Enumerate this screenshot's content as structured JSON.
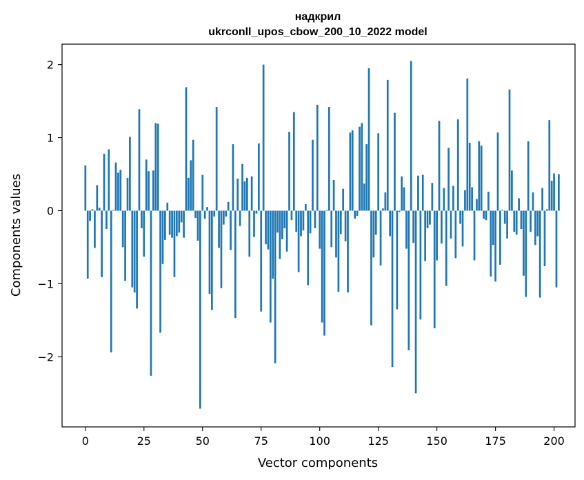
{
  "chart_data": {
    "type": "bar",
    "title_line1": "надкрил",
    "title_line2": "ukrconll_upos_cbow_200_10_2022 model",
    "xlabel": "Vector components",
    "ylabel": "Components values",
    "xlim": [
      -9.95,
      208.95
    ],
    "ylim": [
      -2.96,
      2.28
    ],
    "x_ticks": [
      0,
      25,
      50,
      75,
      100,
      125,
      150,
      175,
      200
    ],
    "y_ticks": [
      2,
      1,
      0,
      -1,
      -2
    ],
    "y_tick_labels": [
      "2",
      "1",
      "0",
      "−1",
      "−2"
    ],
    "bar_color": "#1f77b4",
    "values": [
      0.62,
      -0.93,
      -0.14,
      0.02,
      -0.51,
      0.35,
      0.04,
      -0.91,
      0.78,
      -0.25,
      0.84,
      -1.94,
      0.01,
      0.66,
      0.52,
      0.56,
      -0.5,
      -0.96,
      0.45,
      1.01,
      -1.05,
      -1.12,
      -1.34,
      1.39,
      -0.24,
      -0.63,
      0.7,
      0.54,
      -2.26,
      0.55,
      1.2,
      1.19,
      -1.67,
      -0.73,
      -0.4,
      0.11,
      -0.33,
      -0.37,
      -0.91,
      -0.35,
      -0.3,
      -0.16,
      -0.37,
      1.69,
      0.45,
      0.69,
      0.97,
      -0.1,
      -0.41,
      -2.71,
      0.49,
      -0.11,
      0.05,
      -1.14,
      -1.36,
      -0.08,
      1.42,
      -0.51,
      -1.06,
      -0.19,
      -0.08,
      0.12,
      -0.54,
      0.91,
      -1.47,
      0.44,
      -0.21,
      0.64,
      0.4,
      0.45,
      -0.63,
      0.47,
      -0.36,
      -0.04,
      0.92,
      -1.38,
      2.0,
      -0.46,
      -0.53,
      -1.53,
      -0.93,
      -2.09,
      -0.3,
      -0.66,
      -0.39,
      -0.24,
      -0.56,
      1.08,
      -0.13,
      1.35,
      -0.29,
      -0.84,
      -0.35,
      -0.27,
      0.09,
      -1.02,
      -0.31,
      0.97,
      -0.24,
      1.45,
      -0.52,
      -1.53,
      -1.71,
      0.01,
      1.42,
      -0.5,
      0.42,
      -0.64,
      -1.11,
      -0.32,
      0.3,
      -0.42,
      -1.12,
      1.07,
      1.1,
      -0.11,
      -0.07,
      1.15,
      1.2,
      0.37,
      0.91,
      1.95,
      -1.57,
      -0.64,
      -0.33,
      1.06,
      -0.75,
      0.03,
      0.25,
      1.79,
      -0.35,
      -2.14,
      1.34,
      -1.35,
      -0.02,
      0.47,
      0.32,
      -0.52,
      -1.91,
      2.05,
      -0.44,
      -2.5,
      0.48,
      -1.49,
      0.49,
      -0.69,
      -0.24,
      -0.19,
      0.38,
      -1.61,
      -0.68,
      1.23,
      -0.45,
      0.31,
      -1.03,
      0.86,
      -0.38,
      0.34,
      -0.65,
      1.25,
      -0.18,
      -0.49,
      0.28,
      1.81,
      0.93,
      0.32,
      -0.68,
      0.16,
      0.95,
      0.89,
      -0.11,
      -0.13,
      0.26,
      -0.9,
      -0.47,
      -0.97,
      1.07,
      -0.74,
      0.01,
      -0.18,
      -0.38,
      1.66,
      0.55,
      -0.29,
      -0.33,
      0.17,
      -0.25,
      -0.89,
      -1.18,
      0.95,
      -0.29,
      0.25,
      -0.47,
      -0.35,
      -1.19,
      0.31,
      -0.76,
      0.02,
      1.24,
      0.41,
      0.51,
      -1.05,
      0.5
    ]
  }
}
